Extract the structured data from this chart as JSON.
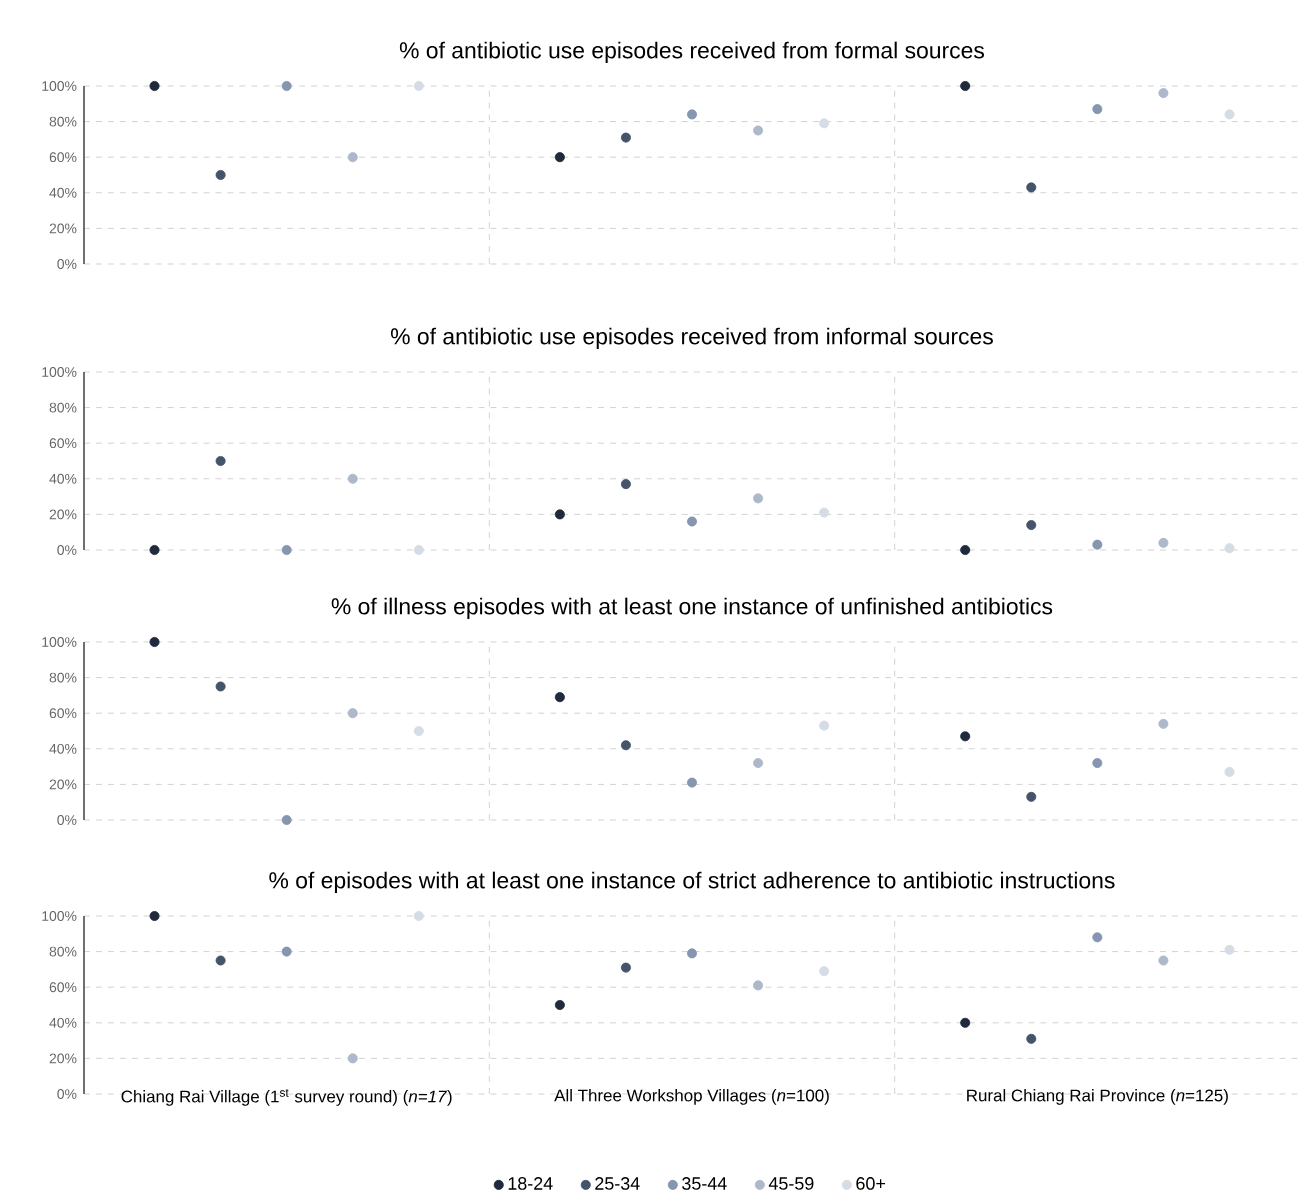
{
  "chart_data": [
    {
      "type": "scatter",
      "title": "% of antibiotic use episodes received from formal sources",
      "categories": [
        null,
        null,
        null
      ],
      "tick_labels": "y",
      "grid": true,
      "legend": false,
      "marker": "circle",
      "ylim": [
        0,
        100
      ],
      "yticks": [
        {
          "value": 0,
          "label": "0%"
        },
        {
          "value": 20,
          "label": "20%"
        },
        {
          "value": 40,
          "label": "40%"
        },
        {
          "value": 60,
          "label": "60%"
        },
        {
          "value": 80,
          "label": "80%"
        },
        {
          "value": 100,
          "label": "100%"
        }
      ],
      "series": [
        {
          "color": "#1f2a3c",
          "values": [
            100,
            60,
            100
          ]
        },
        {
          "color": "#44546a",
          "values": [
            50,
            71,
            43
          ]
        },
        {
          "color": "#8496b0",
          "values": [
            100,
            84,
            87
          ]
        },
        {
          "color": "#adb9ca",
          "values": [
            60,
            75,
            96
          ]
        },
        {
          "color": "#d6dce5",
          "values": [
            100,
            79,
            84
          ]
        }
      ]
    },
    {
      "type": "scatter",
      "title": "% of antibiotic use episodes received from informal sources",
      "categories": [
        null,
        null,
        null
      ],
      "tick_labels": "y",
      "grid": true,
      "legend": false,
      "marker": "circle",
      "ylim": [
        0,
        100
      ],
      "yticks": [
        {
          "value": 0,
          "label": "0%"
        },
        {
          "value": 20,
          "label": "20%"
        },
        {
          "value": 40,
          "label": "40%"
        },
        {
          "value": 60,
          "label": "60%"
        },
        {
          "value": 80,
          "label": "80%"
        },
        {
          "value": 100,
          "label": "100%"
        }
      ],
      "series": [
        {
          "color": "#1f2a3c",
          "values": [
            0,
            20,
            0
          ]
        },
        {
          "color": "#44546a",
          "values": [
            50,
            37,
            14
          ]
        },
        {
          "color": "#8496b0",
          "values": [
            0,
            16,
            3
          ]
        },
        {
          "color": "#adb9ca",
          "values": [
            40,
            29,
            4
          ]
        },
        {
          "color": "#d6dce5",
          "values": [
            0,
            21,
            1
          ]
        }
      ]
    },
    {
      "type": "scatter",
      "title": "% of illness episodes with at least one instance of unfinished antibiotics",
      "categories": [
        null,
        null,
        null
      ],
      "tick_labels": "y",
      "grid": true,
      "legend": false,
      "marker": "circle",
      "ylim": [
        0,
        100
      ],
      "yticks": [
        {
          "value": 0,
          "label": "0%"
        },
        {
          "value": 20,
          "label": "20%"
        },
        {
          "value": 40,
          "label": "40%"
        },
        {
          "value": 60,
          "label": "60%"
        },
        {
          "value": 80,
          "label": "80%"
        },
        {
          "value": 100,
          "label": "100%"
        }
      ],
      "series": [
        {
          "color": "#1f2a3c",
          "values": [
            100,
            69,
            47
          ]
        },
        {
          "color": "#44546a",
          "values": [
            75,
            42,
            13
          ]
        },
        {
          "color": "#8496b0",
          "values": [
            0,
            21,
            32
          ]
        },
        {
          "color": "#adb9ca",
          "values": [
            60,
            32,
            54
          ]
        },
        {
          "color": "#d6dce5",
          "values": [
            50,
            53,
            27
          ]
        }
      ]
    },
    {
      "type": "scatter",
      "title": "% of episodes with at least one instance of strict adherence to antibiotic instructions",
      "categories": [
        "Chiang Rai Village (1$^{st}$ survey round) (*n=17*)",
        "All Three Workshop Villages (*n*=100)",
        "Rural Chiang Rai Province (*n*=125)"
      ],
      "grid": true,
      "legend": "bottom",
      "marker": "circle",
      "ylim": [
        0,
        100
      ],
      "yticks": [
        {
          "value": 0,
          "label": "0%"
        },
        {
          "value": 20,
          "label": "20%"
        },
        {
          "value": 40,
          "label": "40%"
        },
        {
          "value": 60,
          "label": "60%"
        },
        {
          "value": 80,
          "label": "80%"
        },
        {
          "value": 100,
          "label": "100%"
        }
      ],
      "series": [
        {
          "name": "18-24",
          "color": "#1f2a3c",
          "values": [
            100,
            50,
            40
          ]
        },
        {
          "name": "25-34",
          "color": "#44546a",
          "values": [
            75,
            71,
            31
          ]
        },
        {
          "name": "35-44",
          "color": "#8496b0",
          "values": [
            80,
            79,
            88
          ]
        },
        {
          "name": "45-59",
          "color": "#adb9ca",
          "values": [
            20,
            61,
            75
          ]
        },
        {
          "name": "60+",
          "color": "#d6dce5",
          "values": [
            100,
            69,
            81
          ]
        }
      ]
    }
  ]
}
